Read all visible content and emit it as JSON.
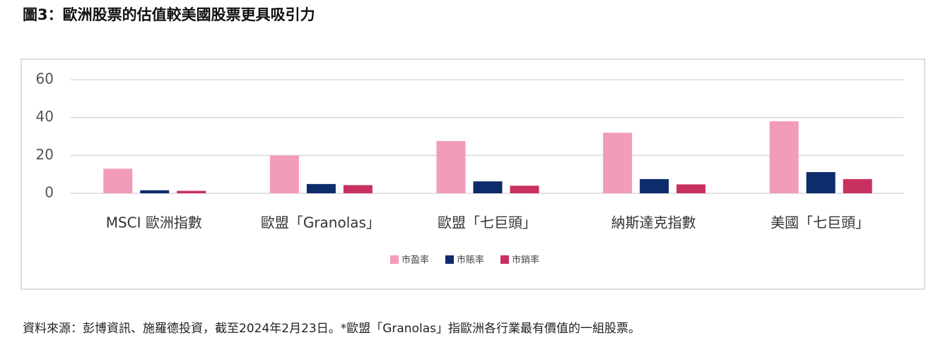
{
  "chart_data": {
    "type": "bar",
    "title": "圖3：歐洲股票的估值較美國股票更具吸引力",
    "categories": [
      "MSCI 歐洲指數",
      "歐盟「Granolas」",
      "歐盟「七巨頭」",
      "納斯達克指數",
      "美國「七巨頭」"
    ],
    "series": [
      {
        "name": "市盈率",
        "color": "#f29bbb",
        "values": [
          13,
          20,
          27.6,
          32,
          38
        ]
      },
      {
        "name": "市賬率",
        "color": "#0d2c6b",
        "values": [
          1.6,
          4.9,
          6.3,
          7.5,
          11.2
        ]
      },
      {
        "name": "市銷率",
        "color": "#c7305f",
        "values": [
          1.3,
          4.3,
          4,
          4.7,
          7.5
        ]
      }
    ],
    "ylim": [
      0,
      60
    ],
    "yticks": [
      0,
      20,
      40,
      60
    ],
    "grid": true,
    "legend": "bottom",
    "note": "資料來源：彭博資訊、施羅德投資，截至2024年2月23日。*歐盟「Granolas」指歐洲各行業最有價值的一組股票。"
  }
}
